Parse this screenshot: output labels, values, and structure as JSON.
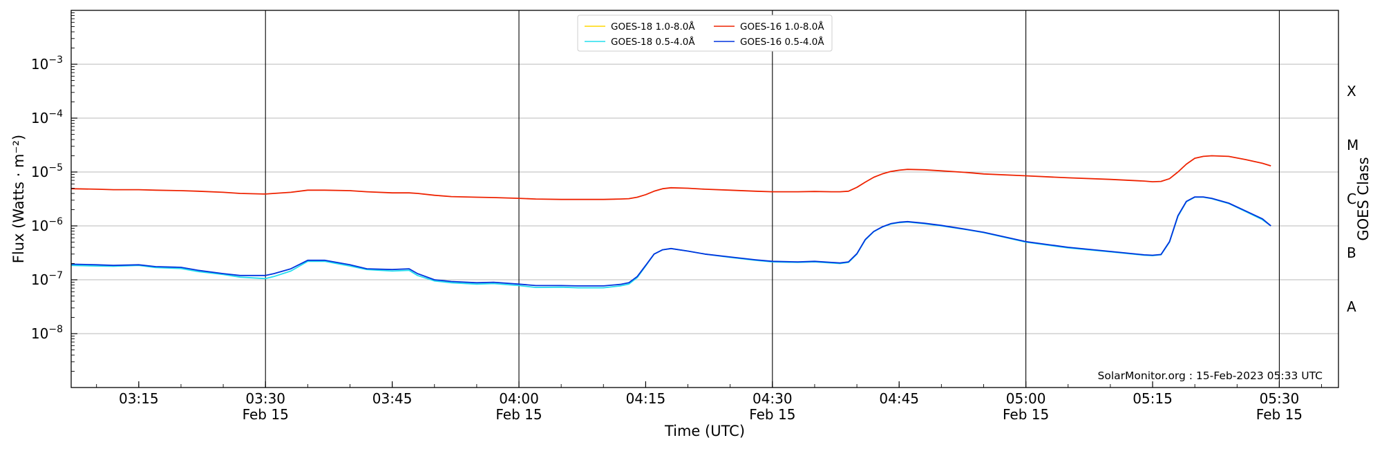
{
  "chart_data": {
    "type": "line",
    "xlabel": "Time (UTC)",
    "ylabel": "Flux (Watts · m⁻²)",
    "ylabel_right": "GOES Class",
    "yscale": "log",
    "ylim": [
      1e-09,
      0.01
    ],
    "xlim": [
      "03:07",
      "05:37"
    ],
    "grid": "horizontal at decades, vertical at half hours",
    "legend_placement": "top-center",
    "credit": "SolarMonitor.org : 15-Feb-2023 05:33 UTC",
    "x_ticks": [
      {
        "time": "03:15",
        "label": "03:15",
        "date": ""
      },
      {
        "time": "03:30",
        "label": "03:30",
        "date": "Feb 15"
      },
      {
        "time": "03:45",
        "label": "03:45",
        "date": ""
      },
      {
        "time": "04:00",
        "label": "04:00",
        "date": "Feb 15"
      },
      {
        "time": "04:15",
        "label": "04:15",
        "date": ""
      },
      {
        "time": "04:30",
        "label": "04:30",
        "date": "Feb 15"
      },
      {
        "time": "04:45",
        "label": "04:45",
        "date": ""
      },
      {
        "time": "05:00",
        "label": "05:00",
        "date": "Feb 15"
      },
      {
        "time": "05:15",
        "label": "05:15",
        "date": ""
      },
      {
        "time": "05:30",
        "label": "05:30",
        "date": "Feb 15"
      }
    ],
    "y_ticks": [
      {
        "value": 1e-08,
        "mantissa": "10",
        "exp": "−8"
      },
      {
        "value": 1e-07,
        "mantissa": "10",
        "exp": "−7"
      },
      {
        "value": 1e-06,
        "mantissa": "10",
        "exp": "−6"
      },
      {
        "value": 1e-05,
        "mantissa": "10",
        "exp": "−5"
      },
      {
        "value": 0.0001,
        "mantissa": "10",
        "exp": "−4"
      },
      {
        "value": 0.001,
        "mantissa": "10",
        "exp": "−3"
      }
    ],
    "goes_classes": [
      {
        "label": "A",
        "value": 3.16e-08
      },
      {
        "label": "B",
        "value": 3.16e-07
      },
      {
        "label": "C",
        "value": 3.16e-06
      },
      {
        "label": "M",
        "value": 3.16e-05
      },
      {
        "label": "X",
        "value": 0.000316
      }
    ],
    "series": [
      {
        "name": "GOES-18 1.0-8.0Å",
        "color": "#ffd700",
        "x": [],
        "y": []
      },
      {
        "name": "GOES-18 0.5-4.0Å",
        "color": "#22ddee",
        "x": [
          "03:07",
          "03:10",
          "03:12",
          "03:15",
          "03:17",
          "03:20",
          "03:22",
          "03:25",
          "03:27",
          "03:30",
          "03:31",
          "03:33",
          "03:35",
          "03:37",
          "03:40",
          "03:42",
          "03:45",
          "03:47",
          "03:48",
          "03:50",
          "03:52",
          "03:55",
          "03:57",
          "04:00",
          "04:02",
          "04:05",
          "04:07",
          "04:10",
          "04:12",
          "04:13",
          "04:14",
          "04:15",
          "04:16",
          "04:17",
          "04:18",
          "04:20",
          "04:22",
          "04:25",
          "04:28",
          "04:30",
          "04:33",
          "04:35",
          "04:37",
          "04:38",
          "04:39",
          "04:40",
          "04:41",
          "04:42",
          "04:43",
          "04:44",
          "04:45",
          "04:46",
          "04:48",
          "04:50",
          "04:53",
          "04:55",
          "05:00",
          "05:05",
          "05:10",
          "05:14",
          "05:15",
          "05:16",
          "05:17",
          "05:18",
          "05:19",
          "05:20",
          "05:21",
          "05:22",
          "05:24",
          "05:26",
          "05:28",
          "05:29"
        ],
        "y": [
          1.85e-07,
          1.8e-07,
          1.78e-07,
          1.85e-07,
          1.68e-07,
          1.62e-07,
          1.42e-07,
          1.25e-07,
          1.12e-07,
          1.05e-07,
          1.15e-07,
          1.45e-07,
          2.2e-07,
          2.2e-07,
          1.8e-07,
          1.55e-07,
          1.45e-07,
          1.5e-07,
          1.2e-07,
          9.5e-08,
          8.8e-08,
          8.3e-08,
          8.5e-08,
          7.8e-08,
          7.2e-08,
          7.3e-08,
          7.1e-08,
          7.1e-08,
          7.7e-08,
          8.3e-08,
          1.1e-07,
          1.8e-07,
          3e-07,
          3.6e-07,
          3.8e-07,
          3.4e-07,
          3e-07,
          2.6e-07,
          2.3e-07,
          2.15e-07,
          2.1e-07,
          2.15e-07,
          2.05e-07,
          2e-07,
          2.1e-07,
          3e-07,
          5.5e-07,
          7.8e-07,
          9.5e-07,
          1.08e-06,
          1.15e-06,
          1.18e-06,
          1.1e-06,
          1e-06,
          8.5e-07,
          7.5e-07,
          5e-07,
          3.9e-07,
          3.3e-07,
          2.85e-07,
          2.8e-07,
          2.9e-07,
          5e-07,
          1.5e-06,
          2.8e-06,
          3.4e-06,
          3.4e-06,
          3.2e-06,
          2.6e-06,
          1.85e-06,
          1.3e-06,
          1e-06
        ]
      },
      {
        "name": "GOES-16 1.0-8.0Å",
        "color": "#ee2200",
        "x": [
          "03:07",
          "03:10",
          "03:12",
          "03:15",
          "03:17",
          "03:20",
          "03:22",
          "03:25",
          "03:27",
          "03:30",
          "03:31",
          "03:33",
          "03:35",
          "03:37",
          "03:40",
          "03:42",
          "03:45",
          "03:47",
          "03:48",
          "03:50",
          "03:52",
          "03:55",
          "03:57",
          "04:00",
          "04:02",
          "04:05",
          "04:07",
          "04:10",
          "04:12",
          "04:13",
          "04:14",
          "04:15",
          "04:16",
          "04:17",
          "04:18",
          "04:20",
          "04:22",
          "04:25",
          "04:28",
          "04:30",
          "04:33",
          "04:35",
          "04:37",
          "04:38",
          "04:39",
          "04:40",
          "04:41",
          "04:42",
          "04:43",
          "04:44",
          "04:45",
          "04:46",
          "04:48",
          "04:50",
          "04:53",
          "04:55",
          "05:00",
          "05:05",
          "05:10",
          "05:14",
          "05:15",
          "05:16",
          "05:17",
          "05:18",
          "05:19",
          "05:20",
          "05:21",
          "05:22",
          "05:24",
          "05:26",
          "05:28",
          "05:29"
        ],
        "y": [
          4.9e-06,
          4.8e-06,
          4.7e-06,
          4.7e-06,
          4.6e-06,
          4.5e-06,
          4.4e-06,
          4.2e-06,
          4e-06,
          3.9e-06,
          4e-06,
          4.2e-06,
          4.6e-06,
          4.6e-06,
          4.5e-06,
          4.3e-06,
          4.1e-06,
          4.1e-06,
          4e-06,
          3.7e-06,
          3.5e-06,
          3.4e-06,
          3.35e-06,
          3.25e-06,
          3.15e-06,
          3.1e-06,
          3.1e-06,
          3.1e-06,
          3.15e-06,
          3.2e-06,
          3.4e-06,
          3.8e-06,
          4.4e-06,
          4.9e-06,
          5.1e-06,
          5e-06,
          4.8e-06,
          4.6e-06,
          4.4e-06,
          4.3e-06,
          4.3e-06,
          4.35e-06,
          4.3e-06,
          4.3e-06,
          4.4e-06,
          5.2e-06,
          6.5e-06,
          8e-06,
          9.2e-06,
          1.02e-05,
          1.08e-05,
          1.12e-05,
          1.1e-05,
          1.05e-05,
          9.8e-06,
          9.2e-06,
          8.5e-06,
          7.8e-06,
          7.3e-06,
          6.8e-06,
          6.6e-06,
          6.7e-06,
          7.5e-06,
          1e-05,
          1.4e-05,
          1.8e-05,
          1.95e-05,
          2e-05,
          1.95e-05,
          1.7e-05,
          1.45e-05,
          1.3e-05
        ]
      },
      {
        "name": "GOES-16 0.5-4.0Å",
        "color": "#0033dd",
        "x": [
          "03:07",
          "03:10",
          "03:12",
          "03:15",
          "03:17",
          "03:20",
          "03:22",
          "03:25",
          "03:27",
          "03:30",
          "03:31",
          "03:33",
          "03:35",
          "03:37",
          "03:40",
          "03:42",
          "03:45",
          "03:47",
          "03:48",
          "03:50",
          "03:52",
          "03:55",
          "03:57",
          "04:00",
          "04:02",
          "04:05",
          "04:07",
          "04:10",
          "04:12",
          "04:13",
          "04:14",
          "04:15",
          "04:16",
          "04:17",
          "04:18",
          "04:20",
          "04:22",
          "04:25",
          "04:28",
          "04:30",
          "04:33",
          "04:35",
          "04:37",
          "04:38",
          "04:39",
          "04:40",
          "04:41",
          "04:42",
          "04:43",
          "04:44",
          "04:45",
          "04:46",
          "04:48",
          "04:50",
          "04:53",
          "04:55",
          "05:00",
          "05:05",
          "05:10",
          "05:14",
          "05:15",
          "05:16",
          "05:17",
          "05:18",
          "05:19",
          "05:20",
          "05:21",
          "05:22",
          "05:24",
          "05:26",
          "05:28",
          "05:29"
        ],
        "y": [
          1.95e-07,
          1.9e-07,
          1.85e-07,
          1.9e-07,
          1.75e-07,
          1.7e-07,
          1.5e-07,
          1.3e-07,
          1.2e-07,
          1.2e-07,
          1.3e-07,
          1.6e-07,
          2.3e-07,
          2.3e-07,
          1.9e-07,
          1.6e-07,
          1.55e-07,
          1.6e-07,
          1.3e-07,
          1e-07,
          9.3e-08,
          8.8e-08,
          9e-08,
          8.3e-08,
          7.8e-08,
          7.8e-08,
          7.7e-08,
          7.7e-08,
          8.2e-08,
          8.8e-08,
          1.15e-07,
          1.85e-07,
          3e-07,
          3.6e-07,
          3.8e-07,
          3.4e-07,
          3e-07,
          2.65e-07,
          2.35e-07,
          2.2e-07,
          2.15e-07,
          2.2e-07,
          2.1e-07,
          2.05e-07,
          2.15e-07,
          3.05e-07,
          5.6e-07,
          7.9e-07,
          9.6e-07,
          1.1e-06,
          1.17e-06,
          1.2e-06,
          1.12e-06,
          1.02e-06,
          8.6e-07,
          7.6e-07,
          5.1e-07,
          4e-07,
          3.35e-07,
          2.9e-07,
          2.85e-07,
          2.95e-07,
          5.1e-07,
          1.55e-06,
          2.85e-06,
          3.45e-06,
          3.45e-06,
          3.25e-06,
          2.65e-06,
          1.9e-06,
          1.35e-06,
          1e-06
        ]
      }
    ]
  }
}
